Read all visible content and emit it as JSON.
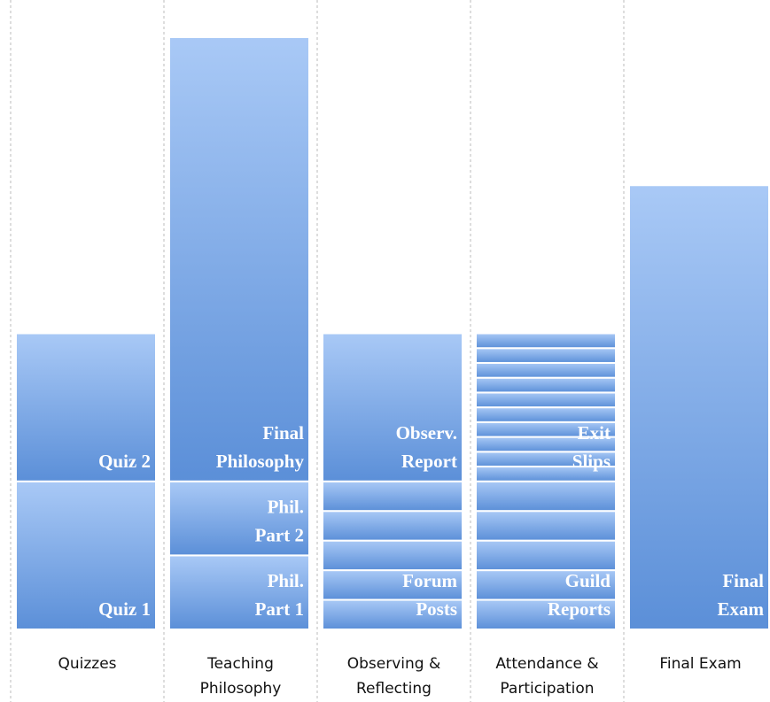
{
  "chart_data": {
    "type": "stacked-blocks",
    "columns": [
      {
        "name": [
          "Quizzes"
        ],
        "groups": [
          {
            "label": [
              "Quiz 1"
            ],
            "values": [
              10
            ]
          },
          {
            "label": [
              "Quiz 2"
            ],
            "values": [
              10
            ]
          }
        ]
      },
      {
        "name": [
          "Teaching",
          "Philosophy"
        ],
        "groups": [
          {
            "label": [
              "Phil.",
              "Part 1"
            ],
            "values": [
              5
            ]
          },
          {
            "label": [
              "Phil.",
              "Part 2"
            ],
            "values": [
              5
            ]
          },
          {
            "label": [
              "Final",
              "Philosophy"
            ],
            "values": [
              30
            ]
          }
        ]
      },
      {
        "name": [
          "Observing &",
          "Reflecting"
        ],
        "groups": [
          {
            "label": [
              "Forum",
              "Posts"
            ],
            "values": [
              2,
              2,
              2,
              2,
              2
            ]
          },
          {
            "label": [
              "Observ.",
              "Report"
            ],
            "values": [
              10
            ]
          }
        ]
      },
      {
        "name": [
          "Attendance &",
          "Participation"
        ],
        "groups": [
          {
            "label": [
              "Guild",
              "Reports"
            ],
            "values": [
              2,
              2,
              2,
              2,
              2
            ]
          },
          {
            "label": [
              "Exit",
              "Slips"
            ],
            "values": [
              1,
              1,
              1,
              1,
              1,
              1,
              1,
              1,
              1,
              1
            ]
          }
        ]
      },
      {
        "name": [
          "Final Exam"
        ],
        "groups": [
          {
            "label": [
              "Final",
              "Exam"
            ],
            "values": [
              30
            ]
          }
        ]
      }
    ]
  }
}
